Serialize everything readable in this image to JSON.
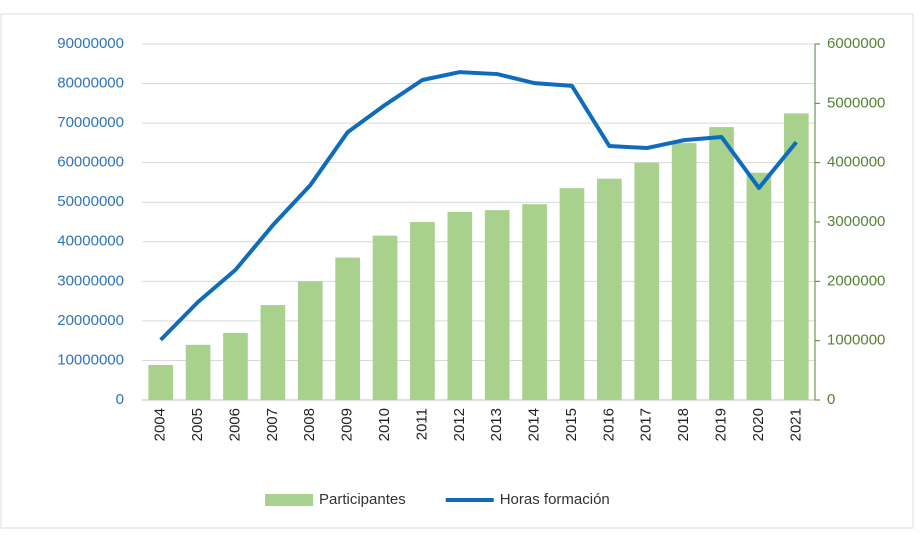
{
  "chart_data": {
    "type": "bar_line",
    "categories": [
      "2004",
      "2005",
      "2006",
      "2007",
      "2008",
      "2009",
      "2010",
      "2011",
      "2012",
      "2013",
      "2014",
      "2015",
      "2016",
      "2017",
      "2018",
      "2019",
      "2020",
      "2021"
    ],
    "series": [
      {
        "name": "Participantes",
        "type": "bar",
        "axis": "y2",
        "color": "#a9d18e",
        "values": [
          590000,
          930000,
          1130000,
          1600000,
          2000000,
          2400000,
          2770000,
          3000000,
          3170000,
          3200000,
          3300000,
          3570000,
          3730000,
          4000000,
          4330000,
          4600000,
          3830000,
          4830000
        ]
      },
      {
        "name": "Horas formación",
        "type": "line",
        "axis": "y",
        "color": "#0f6cbd",
        "values": [
          15200000,
          24800000,
          32900000,
          44200000,
          54300000,
          67700000,
          74600000,
          80900000,
          82900000,
          82400000,
          80100000,
          79400000,
          64200000,
          63700000,
          65700000,
          66500000,
          53600000,
          65200000
        ]
      }
    ],
    "ylim": [
      0,
      90000000
    ],
    "yticks": [
      0,
      10000000,
      20000000,
      30000000,
      40000000,
      50000000,
      60000000,
      70000000,
      80000000,
      90000000
    ],
    "y2lim": [
      0,
      6000000
    ],
    "y2ticks": [
      0,
      1000000,
      2000000,
      3000000,
      4000000,
      5000000,
      6000000
    ],
    "grid": true,
    "legend": "bottom",
    "yaxis_color": "#2e74b5",
    "y2axis_color": "#548235"
  }
}
